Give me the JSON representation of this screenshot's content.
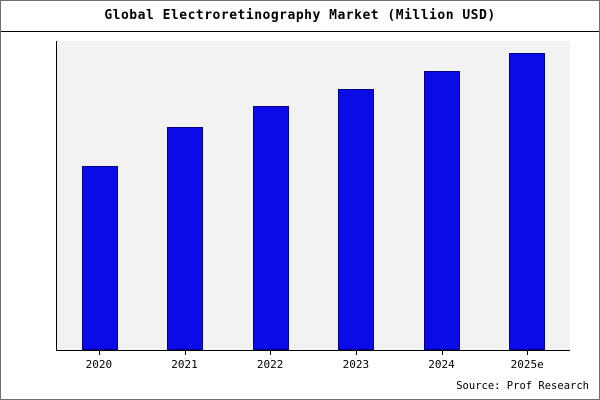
{
  "chart_data": {
    "type": "bar",
    "title": "Global Electroretinography Market (Million USD)",
    "categories": [
      "2020",
      "2021",
      "2022",
      "2023",
      "2024",
      "2025e"
    ],
    "values": [
      62,
      75,
      82,
      88,
      94,
      100
    ],
    "value_scale": "relative estimate; no y-axis tick labels shown in chart, max bar = 100",
    "xlabel": "",
    "ylabel": "",
    "ylim": [
      0,
      104
    ],
    "grid": false,
    "legend": false,
    "bar_color": "#0b0be8",
    "bar_border_color": "#00008b",
    "plot_bg": "#f2f2f2",
    "axis_color": "#000000"
  },
  "footer": {
    "source": "Source: Prof Research"
  }
}
